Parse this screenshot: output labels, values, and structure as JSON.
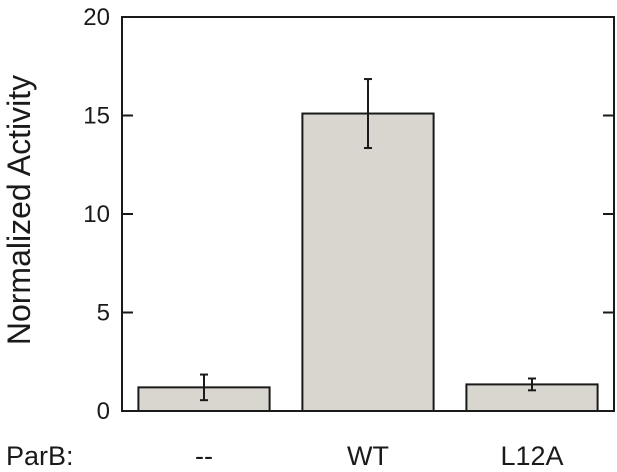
{
  "chart_data": {
    "type": "bar",
    "title": "",
    "xlabel": "ParB:",
    "ylabel": "Normalized Activity",
    "categories": [
      "--",
      "WT",
      "L12A"
    ],
    "values": [
      1.2,
      15.1,
      1.35
    ],
    "error": [
      0.65,
      1.75,
      0.3
    ],
    "ylim": [
      0,
      20
    ],
    "yticks": [
      0,
      5,
      10,
      15,
      20
    ],
    "grid": false,
    "bar_color": "#d8d6cf",
    "edge_color": "#1a1a1a"
  }
}
